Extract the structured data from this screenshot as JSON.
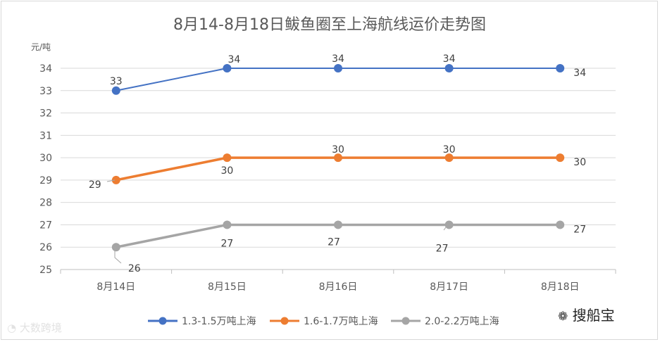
{
  "chart_data": {
    "type": "line",
    "title": "8月14-8月18日鲅鱼圈至上海航线运价走势图",
    "ylabel": "元/吨",
    "xlabel": "",
    "categories": [
      "8月14日",
      "8月15日",
      "8月16日",
      "8月17日",
      "8月18日"
    ],
    "ylim": [
      25,
      34
    ],
    "yticks": [
      "25",
      "26",
      "27",
      "28",
      "29",
      "30",
      "31",
      "32",
      "33",
      "34"
    ],
    "grid": true,
    "legend": "bottom",
    "series": [
      {
        "name": "1.3-1.5万吨上海",
        "values": [
          33,
          34,
          34,
          34,
          34
        ],
        "color": "#4472c4"
      },
      {
        "name": "1.6-1.7万吨上海",
        "values": [
          29,
          30,
          30,
          30,
          30
        ],
        "color": "#ed7d31"
      },
      {
        "name": "2.0-2.2万吨上海",
        "values": [
          26,
          27,
          27,
          27,
          27
        ],
        "color": "#a5a5a5"
      }
    ]
  },
  "watermarks": {
    "left": "大数跨境",
    "right": "搜船宝",
    "left_icon": "weibo-icon",
    "right_icon": "wechat-icon"
  }
}
